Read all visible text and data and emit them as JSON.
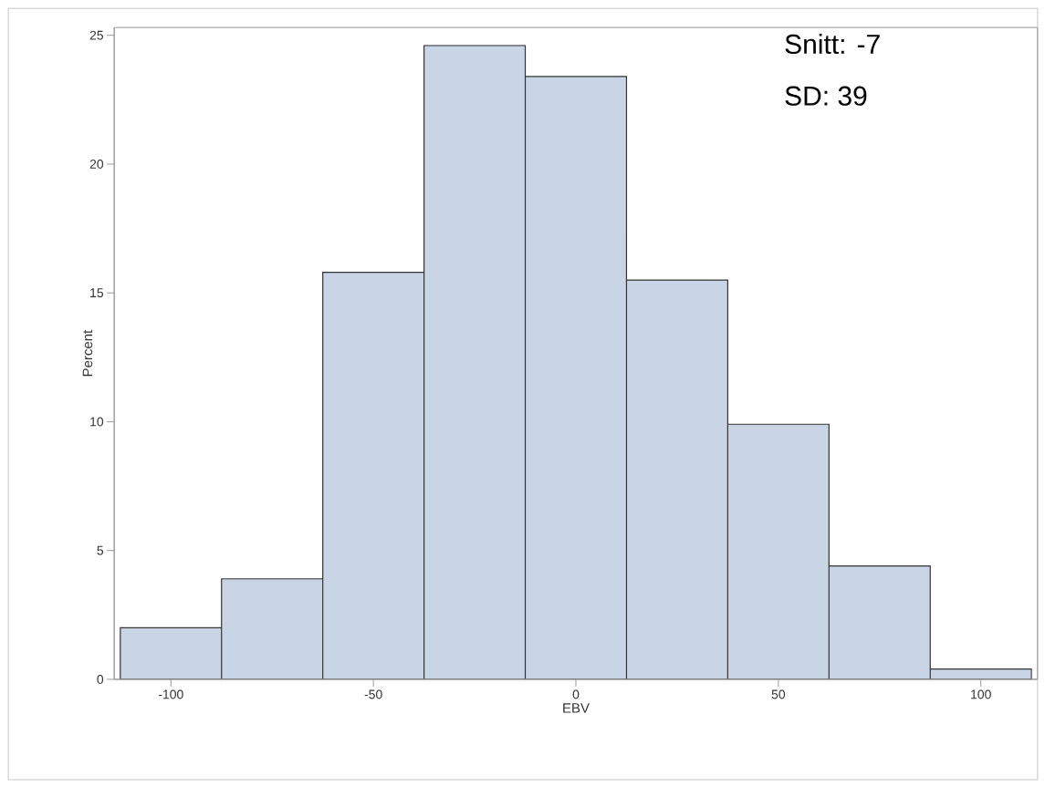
{
  "chart_data": {
    "type": "histogram",
    "xlabel": "EBV",
    "ylabel": "Percent",
    "bins": [
      -112.5,
      -87.5,
      -62.5,
      -37.5,
      -12.5,
      12.5,
      37.5,
      62.5,
      87.5,
      112.5
    ],
    "values": [
      2.0,
      3.9,
      15.8,
      24.6,
      23.4,
      15.5,
      9.9,
      4.4,
      0.4
    ],
    "color": "#c9d5e5",
    "xlim": [
      -114,
      114
    ],
    "xticks": [
      -100,
      -50,
      0,
      50,
      100
    ],
    "ylim": [
      0,
      25.3
    ],
    "yticks": [
      0,
      5,
      10,
      15,
      20,
      25
    ],
    "annotations": [
      "Snitt: -7",
      "SD: 39"
    ]
  }
}
